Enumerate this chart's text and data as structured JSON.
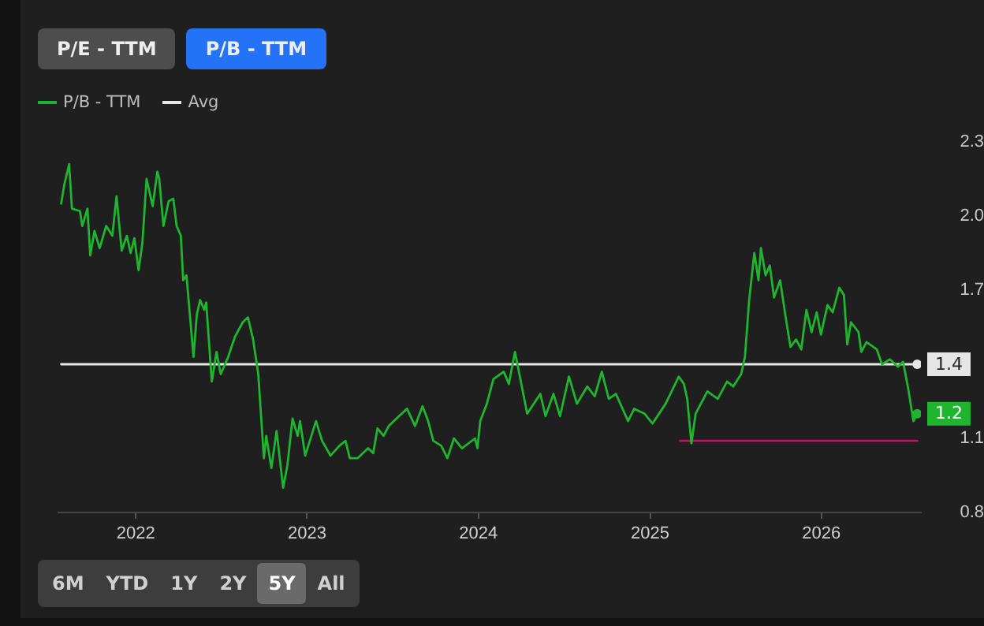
{
  "chart_data": {
    "type": "line",
    "legend": "top left",
    "grid": false,
    "line_style": "solid",
    "annotations": [
      "P/E - TTM",
      "P/B - TTM",
      "6M",
      "YTD",
      "1Y",
      "2Y",
      "5Y",
      "All"
    ],
    "xlim": [
      "2021-07-20",
      "2026-08-01"
    ],
    "xticks": [
      "2022",
      "2023",
      "2024",
      "2025",
      "2026"
    ],
    "ylim": [
      0.8,
      2.3
    ],
    "yticks": [
      0.8,
      1.1,
      1.7,
      {
        "value": 2.0,
        "label": "2.0"
      },
      2.3
    ],
    "series": [
      {
        "name": "P/B - TTM",
        "color": "#1fb52e",
        "value_labels": [
          null,
          null,
          null,
          null,
          null,
          null,
          null,
          null,
          null,
          null,
          null,
          null,
          null,
          null,
          null,
          null,
          null,
          null,
          null,
          null,
          null,
          null,
          null,
          null,
          null,
          null,
          null,
          null,
          null,
          null,
          null,
          null,
          null,
          null,
          null,
          null,
          null,
          null,
          null,
          null,
          null,
          null,
          null,
          null,
          null,
          null,
          null,
          null,
          null,
          null,
          null,
          null,
          null,
          null,
          null,
          null,
          null,
          null,
          null,
          null,
          null,
          null,
          null,
          null,
          null,
          null,
          null,
          null,
          null,
          null,
          null,
          null,
          null,
          null,
          null,
          null,
          null,
          null,
          null,
          null,
          null,
          null,
          null,
          null,
          null,
          null,
          null,
          null,
          null,
          null,
          null,
          null,
          null,
          null,
          null,
          null,
          null,
          null,
          null,
          null,
          null,
          null,
          null,
          null,
          null,
          null,
          null,
          null,
          null,
          null,
          null,
          null,
          null,
          null,
          null,
          null,
          null,
          null,
          null,
          null,
          null,
          null,
          null,
          null,
          null,
          null,
          null,
          null,
          null,
          null,
          null,
          null,
          null,
          null,
          null,
          null,
          null,
          null,
          null,
          null,
          null,
          null,
          null,
          null,
          "1.2"
        ],
        "x": [
          "2021-07-26",
          "2021-08-02",
          "2021-08-12",
          "2021-08-18",
          "2021-09-04",
          "2021-09-09",
          "2021-09-20",
          "2021-09-26",
          "2021-10-05",
          "2021-10-16",
          "2021-10-30",
          "2021-11-12",
          "2021-11-21",
          "2021-12-02",
          "2021-12-13",
          "2021-12-21",
          "2021-12-29",
          "2022-01-07",
          "2022-01-15",
          "2022-01-24",
          "2022-02-06",
          "2022-02-16",
          "2022-02-20",
          "2022-03-01",
          "2022-03-12",
          "2022-03-22",
          "2022-03-29",
          "2022-04-07",
          "2022-04-12",
          "2022-04-19",
          "2022-05-04",
          "2022-05-11",
          "2022-05-18",
          "2022-05-27",
          "2022-05-31",
          "2022-06-12",
          "2022-06-22",
          "2022-07-01",
          "2022-07-17",
          "2022-07-31",
          "2022-08-17",
          "2022-08-28",
          "2022-09-08",
          "2022-09-19",
          "2022-10-01",
          "2022-10-06",
          "2022-10-17",
          "2022-10-28",
          "2022-11-11",
          "2022-11-20",
          "2022-12-01",
          "2022-12-12",
          "2022-12-17",
          "2022-12-28",
          "2023-01-20",
          "2023-02-02",
          "2023-02-20",
          "2023-03-11",
          "2023-03-24",
          "2023-04-02",
          "2023-04-19",
          "2023-05-11",
          "2023-05-22",
          "2023-05-31",
          "2023-06-13",
          "2023-06-24",
          "2023-07-16",
          "2023-08-02",
          "2023-08-19",
          "2023-09-04",
          "2023-09-16",
          "2023-09-27",
          "2023-10-14",
          "2023-10-27",
          "2023-11-10",
          "2023-11-27",
          "2023-12-25",
          "2023-12-30",
          "2024-01-05",
          "2024-01-19",
          "2024-02-02",
          "2024-02-24",
          "2024-03-06",
          "2024-03-19",
          "2024-04-14",
          "2024-05-12",
          "2024-05-23",
          "2024-06-09",
          "2024-06-23",
          "2024-07-12",
          "2024-07-29",
          "2024-08-20",
          "2024-09-05",
          "2024-09-20",
          "2024-10-05",
          "2024-10-20",
          "2024-11-15",
          "2024-11-28",
          "2024-12-20",
          "2025-01-06",
          "2025-02-03",
          "2025-03-03",
          "2025-03-14",
          "2025-03-21",
          "2025-03-30",
          "2025-04-08",
          "2025-05-03",
          "2025-05-25",
          "2025-06-14",
          "2025-06-27",
          "2025-07-14",
          "2025-07-22",
          "2025-07-31",
          "2025-08-11",
          "2025-08-20",
          "2025-08-25",
          "2025-09-04",
          "2025-09-13",
          "2025-09-22",
          "2025-10-05",
          "2025-10-16",
          "2025-10-27",
          "2025-11-08",
          "2025-11-19",
          "2025-11-30",
          "2025-12-11",
          "2025-12-22",
          "2025-12-31",
          "2026-01-14",
          "2026-01-25",
          "2026-02-08",
          "2026-02-18",
          "2026-02-25",
          "2026-03-05",
          "2026-03-21",
          "2026-03-27",
          "2026-04-07",
          "2026-04-29",
          "2026-05-10",
          "2026-05-27",
          "2026-06-13",
          "2026-06-24",
          "2026-07-05",
          "2026-07-16",
          "2026-07-24"
        ],
        "values": [
          2.05,
          2.13,
          2.21,
          2.03,
          2.02,
          1.96,
          2.03,
          1.84,
          1.94,
          1.87,
          1.96,
          1.92,
          2.08,
          1.86,
          1.92,
          1.85,
          1.91,
          1.78,
          1.89,
          2.15,
          2.04,
          2.18,
          2.15,
          1.96,
          2.06,
          2.07,
          1.96,
          1.92,
          1.74,
          1.76,
          1.43,
          1.6,
          1.66,
          1.62,
          1.65,
          1.33,
          1.45,
          1.36,
          1.43,
          1.51,
          1.57,
          1.59,
          1.5,
          1.36,
          1.02,
          1.11,
          0.98,
          1.13,
          0.9,
          0.99,
          1.18,
          1.11,
          1.17,
          1.03,
          1.17,
          1.09,
          1.03,
          1.07,
          1.09,
          1.02,
          1.02,
          1.06,
          1.04,
          1.14,
          1.11,
          1.15,
          1.19,
          1.22,
          1.15,
          1.23,
          1.17,
          1.09,
          1.07,
          1.02,
          1.1,
          1.06,
          1.1,
          1.06,
          1.17,
          1.24,
          1.34,
          1.37,
          1.32,
          1.45,
          1.2,
          1.28,
          1.19,
          1.28,
          1.19,
          1.35,
          1.24,
          1.31,
          1.27,
          1.37,
          1.26,
          1.28,
          1.17,
          1.22,
          1.2,
          1.16,
          1.24,
          1.35,
          1.32,
          1.26,
          1.08,
          1.2,
          1.29,
          1.26,
          1.33,
          1.31,
          1.36,
          1.43,
          1.66,
          1.85,
          1.74,
          1.87,
          1.76,
          1.8,
          1.67,
          1.74,
          1.6,
          1.47,
          1.5,
          1.46,
          1.62,
          1.53,
          1.61,
          1.52,
          1.64,
          1.61,
          1.71,
          1.68,
          1.48,
          1.57,
          1.53,
          1.45,
          1.49,
          1.46,
          1.4,
          1.42,
          1.39,
          1.41,
          1.3,
          1.17,
          1.2
        ]
      },
      {
        "name": "Avg",
        "color": "#e6e6e6",
        "x": [
          "2021-07-26",
          "2026-07-24"
        ],
        "values": [
          1.4,
          1.4
        ],
        "value_labels": [
          null,
          "1.4"
        ]
      },
      {
        "color": "#b3195e",
        "x": [
          "2025-03-06",
          "2026-07-24"
        ],
        "values": [
          1.09,
          1.09
        ]
      }
    ]
  }
}
